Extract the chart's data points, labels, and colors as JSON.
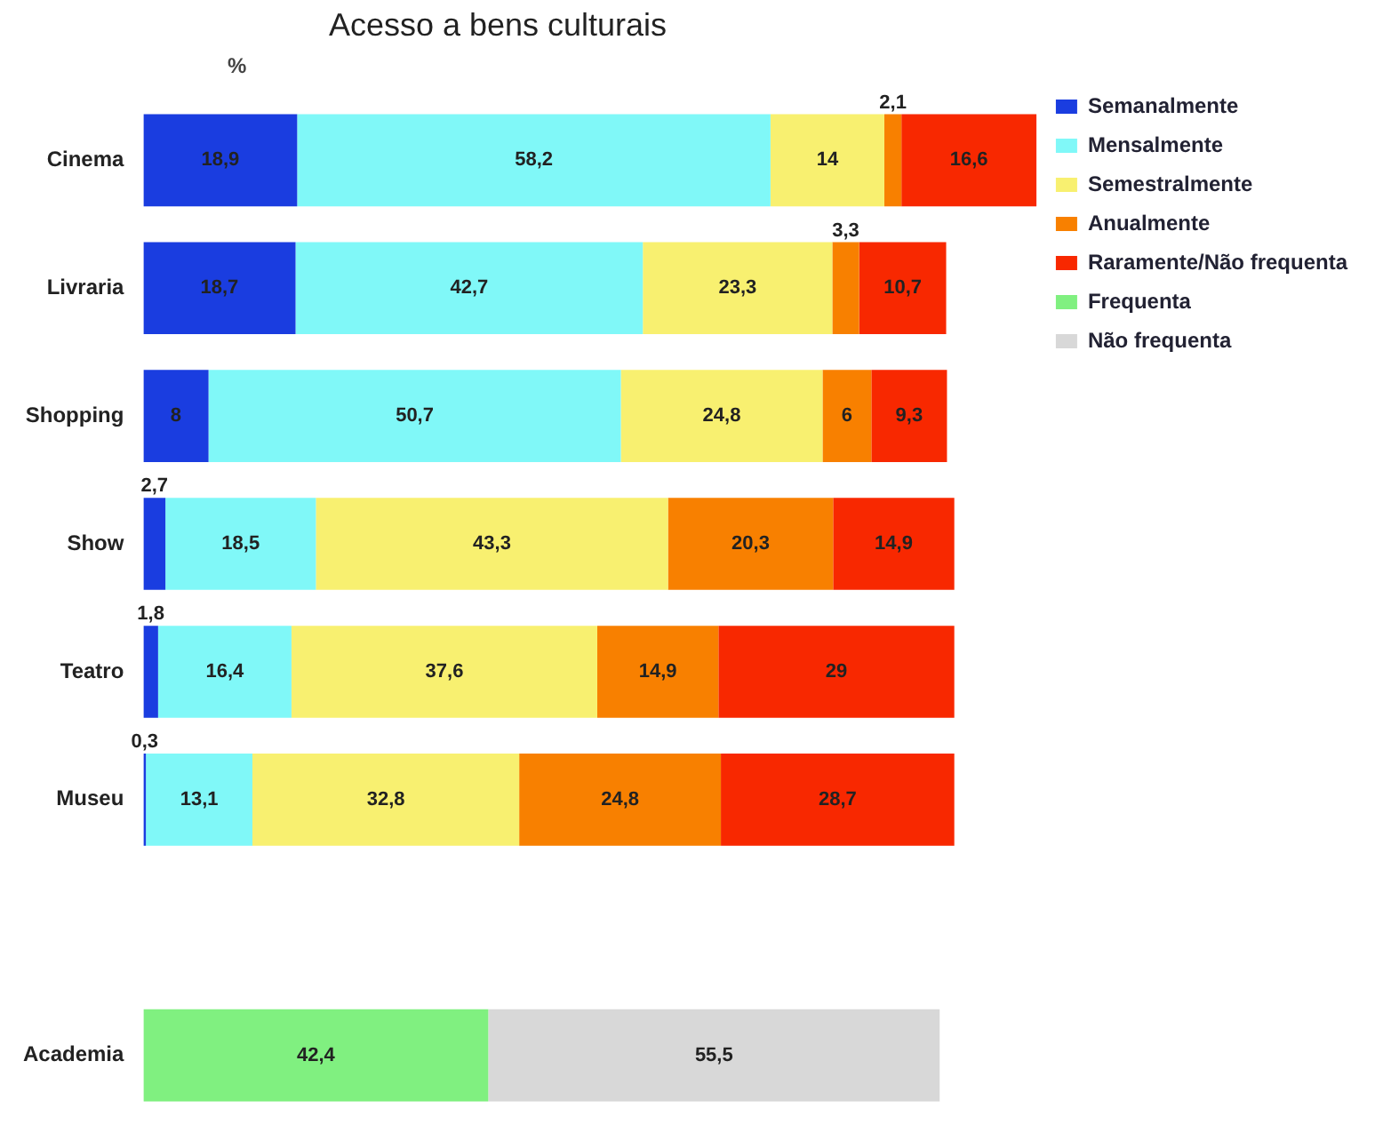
{
  "chart_data": {
    "type": "bar",
    "orientation": "horizontal",
    "stacked": true,
    "title": "Acesso a bens culturais",
    "annotations": [
      "%"
    ],
    "categories": [
      "Cinema",
      "Livraria",
      "Shopping",
      "Show",
      "Teatro",
      "Museu",
      null,
      "Academia"
    ],
    "xlim": [
      0,
      110
    ],
    "legend": "right",
    "series": [
      {
        "name": "Semanalmente",
        "color": "#1a3de0",
        "values": [
          18.9,
          18.7,
          8,
          2.7,
          1.8,
          0.3,
          null,
          null
        ],
        "value_labels": [
          "18,9",
          "18,7",
          "8",
          "2,7",
          "1,8",
          "0,3",
          null,
          null
        ]
      },
      {
        "name": "Mensalmente",
        "color": "#80f8f8",
        "values": [
          58.2,
          42.7,
          50.7,
          18.5,
          16.4,
          13.1,
          null,
          null
        ],
        "value_labels": [
          "58,2",
          "42,7",
          "50,7",
          "18,5",
          "16,4",
          "13,1",
          null,
          null
        ]
      },
      {
        "name": "Semestralmente",
        "color": "#f8f070",
        "values": [
          14,
          23.3,
          24.8,
          43.3,
          37.6,
          32.8,
          null,
          null
        ],
        "value_labels": [
          "14",
          "23,3",
          "24,8",
          "43,3",
          "37,6",
          "32,8",
          null,
          null
        ]
      },
      {
        "name": "Anualmente",
        "color": "#f88000",
        "values": [
          2.1,
          3.3,
          6,
          20.3,
          14.9,
          24.8,
          null,
          null
        ],
        "value_labels": [
          "2,1",
          "3,3",
          "6",
          "20,3",
          "14,9",
          "24,8",
          null,
          null
        ]
      },
      {
        "name": "Raramente/Não frequenta",
        "color": "#f82800",
        "values": [
          16.6,
          10.7,
          9.3,
          14.9,
          29,
          28.7,
          null,
          null
        ],
        "value_labels": [
          "16,6",
          "10,7",
          "9,3",
          "14,9",
          "29",
          "28,7",
          null,
          null
        ]
      },
      {
        "name": "Frequenta",
        "color": "#80f080",
        "values": [
          null,
          null,
          null,
          null,
          null,
          null,
          null,
          42.4
        ],
        "value_labels": [
          null,
          null,
          null,
          null,
          null,
          null,
          null,
          "42,4"
        ]
      },
      {
        "name": "Não frequenta",
        "color": "#d8d8d8",
        "values": [
          null,
          null,
          null,
          null,
          null,
          null,
          null,
          55.5
        ],
        "value_labels": [
          null,
          null,
          null,
          null,
          null,
          null,
          null,
          "55,5"
        ]
      }
    ]
  }
}
